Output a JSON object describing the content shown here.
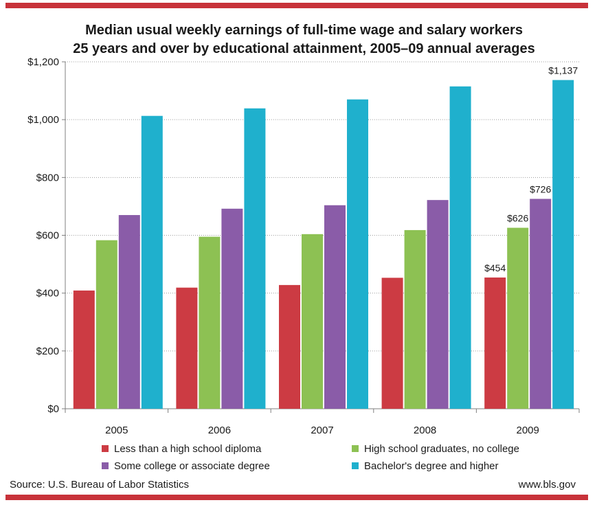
{
  "chart_data": {
    "type": "bar",
    "title": "Median usual weekly earnings of full-time wage and salary workers",
    "subtitle": "25 years and over by educational attainment, 2005–09 annual averages",
    "categories": [
      "2005",
      "2006",
      "2007",
      "2008",
      "2009"
    ],
    "series": [
      {
        "name": "Less than a high school diploma",
        "color": "#cc3b43",
        "values": [
          409,
          419,
          428,
          453,
          454
        ]
      },
      {
        "name": "High school graduates, no college",
        "color": "#8dc153",
        "values": [
          583,
          595,
          604,
          618,
          626
        ]
      },
      {
        "name": "Some college or associate  degree",
        "color": "#8a5ca8",
        "values": [
          670,
          692,
          704,
          722,
          726
        ]
      },
      {
        "name": "Bachelor's degree and higher",
        "color": "#1fb0cd",
        "values": [
          1013,
          1039,
          1070,
          1115,
          1137
        ]
      }
    ],
    "data_labels": [
      {
        "category": "2009",
        "series": 0,
        "text": "$454"
      },
      {
        "category": "2009",
        "series": 1,
        "text": "$626"
      },
      {
        "category": "2009",
        "series": 2,
        "text": "$726"
      },
      {
        "category": "2009",
        "series": 3,
        "text": "$1,137"
      }
    ],
    "yticks": [
      0,
      200,
      400,
      600,
      800,
      1000,
      1200
    ],
    "ytick_labels": [
      "$0",
      "$200",
      "$400",
      "$600",
      "$800",
      "$1,000",
      "$1,200"
    ],
    "ylim": [
      0,
      1200
    ],
    "grid": true,
    "legend_placement": "bottom",
    "source": "Source: U.S. Bureau of Labor Statistics",
    "website": "www.bls.gov",
    "accent_color": "#c8323a"
  }
}
